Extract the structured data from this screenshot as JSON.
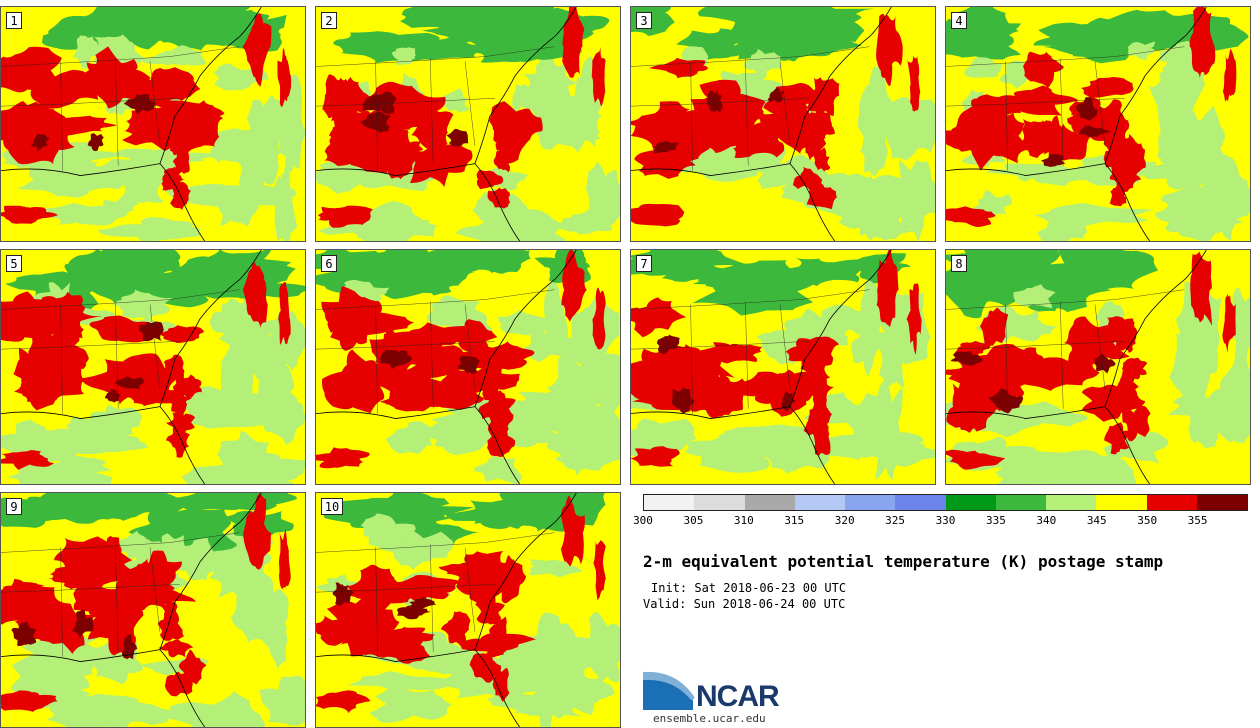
{
  "title": "2-m equivalent potential temperature (K) postage stamp",
  "init_line": "Init: Sat 2018-06-23 00 UTC",
  "valid_line": "Valid: Sun 2018-06-24 00 UTC",
  "logo": {
    "text": "NCAR",
    "url": "ensemble.ucar.edu",
    "icon": "ncar-logo-icon"
  },
  "members": [
    "1",
    "2",
    "3",
    "4",
    "5",
    "6",
    "7",
    "8",
    "9",
    "10"
  ],
  "colorbar": {
    "ticks": [
      "300",
      "305",
      "310",
      "315",
      "320",
      "325",
      "330",
      "335",
      "340",
      "345",
      "350",
      "355"
    ],
    "colors": [
      "#f2f2f2",
      "#dcdcdc",
      "#a9a9a9",
      "#b4c8f5",
      "#8aa5f0",
      "#6c85ec",
      "#009a18",
      "#3cb93c",
      "#b4ef78",
      "#ffff00",
      "#e60000",
      "#7d0000"
    ]
  },
  "map_colors": {
    "ocean_fill": "#ffff00",
    "land_fill": "#ffff00",
    "cool_green": "#3cb93c",
    "light_green": "#b4ef78",
    "warm_red": "#e60000",
    "very_warm": "#7d0000"
  }
}
